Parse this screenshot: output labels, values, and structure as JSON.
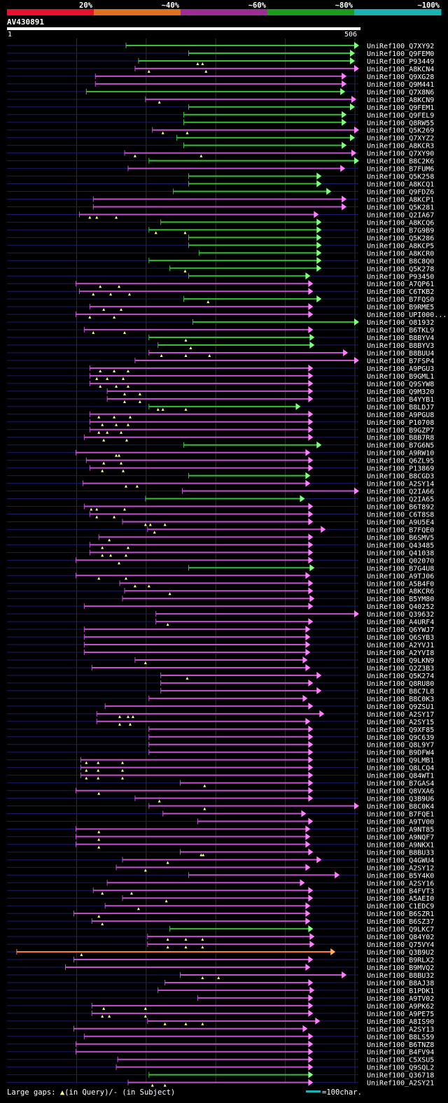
{
  "legend": {
    "labels": [
      "20%",
      "~40%",
      "~60%",
      "~80%",
      "~100%"
    ],
    "colors": [
      "#e8112d",
      "#e07020",
      "#9d2d96",
      "#1a9b1a",
      "#18b4b4"
    ]
  },
  "query": {
    "name": "AV430891",
    "start": "1",
    "end": "506",
    "length": 506
  },
  "colors": {
    "background": "#000000",
    "grid": "#2f2f2f",
    "track": "#1a1a6a",
    "green": "#30c030",
    "magenta": "#c54ed2",
    "orange": "#ff7f23",
    "arrow_green": "#80ff80",
    "arrow_magenta": "#ff80ff",
    "arrow_orange": "#ffb060",
    "gap_marker": "#ffff80"
  },
  "footer": {
    "gap_label": "Large gaps: ",
    "query_gap": "(in Query)/",
    "subject_gap": "- (in Subject)",
    "scale_label": "=100char."
  },
  "hits": [
    {
      "id": "UniRef100_Q7XY92",
      "c": "g",
      "s": 172,
      "e": 506,
      "m": []
    },
    {
      "id": "UniRef100_Q9FEM0",
      "c": "g",
      "s": 262,
      "e": 500,
      "m": []
    },
    {
      "id": "UniRef100_P93449",
      "c": "g",
      "s": 190,
      "e": 500,
      "m": [
        275,
        282
      ]
    },
    {
      "id": "UniRef100_A8KCN4",
      "c": "m",
      "s": 185,
      "e": 506,
      "m": [
        205,
        287
      ]
    },
    {
      "id": "UniRef100_Q9XG28",
      "c": "m",
      "s": 128,
      "e": 488,
      "m": []
    },
    {
      "id": "UniRef100_Q9M441",
      "c": "m",
      "s": 128,
      "e": 488,
      "m": []
    },
    {
      "id": "UniRef100_Q7X8N6",
      "c": "g",
      "s": 115,
      "e": 486,
      "m": []
    },
    {
      "id": "UniRef100_A8KCN9",
      "c": "m",
      "s": 200,
      "e": 502,
      "m": [
        220
      ]
    },
    {
      "id": "UniRef100_Q9FEM1",
      "c": "g",
      "s": 262,
      "e": 500,
      "m": []
    },
    {
      "id": "UniRef100_Q9FEL9",
      "c": "g",
      "s": 255,
      "e": 488,
      "m": []
    },
    {
      "id": "UniRef100_Q8RW55",
      "c": "g",
      "s": 255,
      "e": 488,
      "m": []
    },
    {
      "id": "UniRef100_Q5K269",
      "c": "m",
      "s": 210,
      "e": 506,
      "m": [
        225,
        260
      ]
    },
    {
      "id": "UniRef100_Q7XYZ2",
      "c": "g",
      "s": 245,
      "e": 500,
      "m": []
    },
    {
      "id": "UniRef100_A8KCR3",
      "c": "g",
      "s": 255,
      "e": 488,
      "m": []
    },
    {
      "id": "UniRef100_Q7XY90",
      "c": "m",
      "s": 170,
      "e": 502,
      "m": [
        185,
        280
      ]
    },
    {
      "id": "UniRef100_B8C2K6",
      "c": "g",
      "s": 205,
      "e": 506,
      "m": []
    },
    {
      "id": "UniRef100_B7FUM6",
      "c": "m",
      "s": 175,
      "e": 486,
      "m": []
    },
    {
      "id": "UniRef100_Q5K258",
      "c": "g",
      "s": 262,
      "e": 452,
      "m": []
    },
    {
      "id": "UniRef100_A8KCQ1",
      "c": "g",
      "s": 262,
      "e": 452,
      "m": []
    },
    {
      "id": "UniRef100_Q9FDZ6",
      "c": "g",
      "s": 240,
      "e": 466,
      "m": []
    },
    {
      "id": "UniRef100_A8KCP1",
      "c": "m",
      "s": 125,
      "e": 488,
      "m": []
    },
    {
      "id": "UniRef100_Q5K281",
      "c": "m",
      "s": 125,
      "e": 488,
      "m": []
    },
    {
      "id": "UniRef100_Q2IA67",
      "c": "m",
      "s": 105,
      "e": 448,
      "m": [
        120,
        130,
        158
      ]
    },
    {
      "id": "UniRef100_A8KCQ6",
      "c": "g",
      "s": 222,
      "e": 452,
      "m": []
    },
    {
      "id": "UniRef100_B7G9B9",
      "c": "g",
      "s": 205,
      "e": 452,
      "m": [
        215,
        257
      ]
    },
    {
      "id": "UniRef100_Q5K286",
      "c": "g",
      "s": 262,
      "e": 452,
      "m": []
    },
    {
      "id": "UniRef100_A8KCP5",
      "c": "g",
      "s": 262,
      "e": 452,
      "m": []
    },
    {
      "id": "UniRef100_A8KCR0",
      "c": "g",
      "s": 277,
      "e": 452,
      "m": []
    },
    {
      "id": "UniRef100_B8C8Q0",
      "c": "g",
      "s": 205,
      "e": 452,
      "m": []
    },
    {
      "id": "UniRef100_Q5K278",
      "c": "g",
      "s": 235,
      "e": 452,
      "m": [
        257
      ]
    },
    {
      "id": "UniRef100_P93450",
      "c": "g",
      "s": 262,
      "e": 436,
      "m": []
    },
    {
      "id": "UniRef100_A7QP61",
      "c": "m",
      "s": 100,
      "e": 440,
      "m": [
        135,
        162
      ]
    },
    {
      "id": "UniRef100_C6TKB2",
      "c": "m",
      "s": 105,
      "e": 440,
      "m": [
        125,
        150,
        177
      ]
    },
    {
      "id": "UniRef100_B7FQS0",
      "c": "g",
      "s": 255,
      "e": 452,
      "m": [
        290
      ]
    },
    {
      "id": "UniRef100_B9RME5",
      "c": "m",
      "s": 120,
      "e": 440,
      "m": [
        140,
        165
      ]
    },
    {
      "id": "UniRef100_UPI000...",
      "c": "m",
      "s": 100,
      "e": 440,
      "m": [
        120,
        155
      ]
    },
    {
      "id": "UniRef100_O81932",
      "c": "g",
      "s": 268,
      "e": 506,
      "m": []
    },
    {
      "id": "UniRef100_B6TKL9",
      "c": "m",
      "s": 112,
      "e": 440,
      "m": [
        125,
        170
      ]
    },
    {
      "id": "UniRef100_B8BYV4",
      "c": "g",
      "s": 205,
      "e": 442,
      "m": [
        258
      ]
    },
    {
      "id": "UniRef100_B8BYV3",
      "c": "g",
      "s": 218,
      "e": 442,
      "m": [
        265
      ]
    },
    {
      "id": "UniRef100_B8BUU4",
      "c": "m",
      "s": 205,
      "e": 490,
      "m": [
        223,
        258,
        292
      ]
    },
    {
      "id": "UniRef100_B7FSP4",
      "c": "m",
      "s": 185,
      "e": 506,
      "m": []
    },
    {
      "id": "UniRef100_A9PGU3",
      "c": "m",
      "s": 120,
      "e": 440,
      "m": [
        135,
        155,
        175
      ]
    },
    {
      "id": "UniRef100_B9GML1",
      "c": "m",
      "s": 120,
      "e": 440,
      "m": [
        130,
        145,
        168
      ]
    },
    {
      "id": "UniRef100_Q9SYW8",
      "c": "m",
      "s": 120,
      "e": 440,
      "m": [
        135,
        158,
        175
      ]
    },
    {
      "id": "UniRef100_Q9M320",
      "c": "m",
      "s": 145,
      "e": 440,
      "m": [
        170,
        192
      ]
    },
    {
      "id": "UniRef100_B4YYB1",
      "c": "m",
      "s": 145,
      "e": 440,
      "m": [
        170,
        192
      ]
    },
    {
      "id": "UniRef100_B8LDJ7",
      "c": "g",
      "s": 205,
      "e": 422,
      "m": [
        218,
        225,
        258
      ]
    },
    {
      "id": "UniRef100_A9PGU8",
      "c": "m",
      "s": 120,
      "e": 440,
      "m": [
        133,
        155,
        178
      ]
    },
    {
      "id": "UniRef100_P10708",
      "c": "m",
      "s": 120,
      "e": 440,
      "m": [
        138,
        158,
        175
      ]
    },
    {
      "id": "UniRef100_B9GZP7",
      "c": "m",
      "s": 120,
      "e": 440,
      "m": [
        133,
        145,
        165
      ]
    },
    {
      "id": "UniRef100_B8B7R8",
      "c": "m",
      "s": 112,
      "e": 440,
      "m": [
        140,
        173
      ]
    },
    {
      "id": "UniRef100_B7G6N5",
      "c": "g",
      "s": 255,
      "e": 452,
      "m": []
    },
    {
      "id": "UniRef100_A9RW10",
      "c": "m",
      "s": 100,
      "e": 436,
      "m": [
        158,
        162
      ]
    },
    {
      "id": "UniRef100_Q6ZL95",
      "c": "m",
      "s": 115,
      "e": 440,
      "m": [
        140,
        165
      ]
    },
    {
      "id": "UniRef100_P13869",
      "c": "m",
      "s": 120,
      "e": 440,
      "m": [
        138,
        168
      ]
    },
    {
      "id": "UniRef100_B8CGD3",
      "c": "g",
      "s": 262,
      "e": 436,
      "m": []
    },
    {
      "id": "UniRef100_A2SY14",
      "c": "m",
      "s": 110,
      "e": 436,
      "m": [
        172,
        188
      ]
    },
    {
      "id": "UniRef100_Q2IA66",
      "c": "m",
      "s": 253,
      "e": 506,
      "m": []
    },
    {
      "id": "UniRef100_Q2IA65",
      "c": "g",
      "s": 200,
      "e": 428,
      "m": []
    },
    {
      "id": "UniRef100_B6T892",
      "c": "m",
      "s": 112,
      "e": 440,
      "m": [
        122,
        130,
        170
      ]
    },
    {
      "id": "UniRef100_C6T8S8",
      "c": "m",
      "s": 120,
      "e": 440,
      "m": [
        130,
        155
      ]
    },
    {
      "id": "UniRef100_A9U5E4",
      "c": "m",
      "s": 167,
      "e": 440,
      "m": [
        200,
        207,
        228
      ]
    },
    {
      "id": "UniRef100_B7FQE0",
      "c": "m",
      "s": 203,
      "e": 458,
      "m": [
        213
      ]
    },
    {
      "id": "UniRef100_B6SMV5",
      "c": "m",
      "s": 133,
      "e": 440,
      "m": [
        148
      ]
    },
    {
      "id": "UniRef100_Q43485",
      "c": "m",
      "s": 120,
      "e": 440,
      "m": [
        138,
        175
      ]
    },
    {
      "id": "UniRef100_Q41038",
      "c": "m",
      "s": 120,
      "e": 440,
      "m": [
        138,
        150,
        172
      ]
    },
    {
      "id": "UniRef100_Q02070",
      "c": "m",
      "s": 100,
      "e": 440,
      "m": [
        162
      ]
    },
    {
      "id": "UniRef100_B7G4U8",
      "c": "g",
      "s": 262,
      "e": 442,
      "m": []
    },
    {
      "id": "UniRef100_A9TJ06",
      "c": "m",
      "s": 100,
      "e": 436,
      "m": [
        133,
        172
      ]
    },
    {
      "id": "UniRef100_A5B4F0",
      "c": "m",
      "s": 163,
      "e": 440,
      "m": [
        185,
        205
      ]
    },
    {
      "id": "UniRef100_A8KCR6",
      "c": "m",
      "s": 170,
      "e": 440,
      "m": [
        235
      ]
    },
    {
      "id": "UniRef100_B5YM80",
      "c": "m",
      "s": 167,
      "e": 442,
      "m": []
    },
    {
      "id": "UniRef100_Q40252",
      "c": "m",
      "s": 112,
      "e": 440,
      "m": []
    },
    {
      "id": "UniRef100_Q39632",
      "c": "m",
      "s": 215,
      "e": 506,
      "m": []
    },
    {
      "id": "UniRef100_A4URF4",
      "c": "m",
      "s": 215,
      "e": 440,
      "m": [
        232
      ]
    },
    {
      "id": "UniRef100_Q6YWJ7",
      "c": "m",
      "s": 112,
      "e": 436,
      "m": []
    },
    {
      "id": "UniRef100_Q6SYB3",
      "c": "m",
      "s": 112,
      "e": 436,
      "m": []
    },
    {
      "id": "UniRef100_A2YVJ1",
      "c": "m",
      "s": 112,
      "e": 436,
      "m": []
    },
    {
      "id": "UniRef100_A2YVI8",
      "c": "m",
      "s": 112,
      "e": 436,
      "m": []
    },
    {
      "id": "UniRef100_Q9LKN9",
      "c": "m",
      "s": 185,
      "e": 432,
      "m": [
        200
      ]
    },
    {
      "id": "UniRef100_Q2Z3B3",
      "c": "m",
      "s": 123,
      "e": 436,
      "m": []
    },
    {
      "id": "UniRef100_Q5K274",
      "c": "m",
      "s": 222,
      "e": 452,
      "m": [
        260
      ]
    },
    {
      "id": "UniRef100_Q8RU80",
      "c": "m",
      "s": 222,
      "e": 440,
      "m": []
    },
    {
      "id": "UniRef100_B8C7L8",
      "c": "m",
      "s": 222,
      "e": 452,
      "m": []
    },
    {
      "id": "UniRef100_B8C0K3",
      "c": "m",
      "s": 205,
      "e": 432,
      "m": []
    },
    {
      "id": "UniRef100_Q9ZSU1",
      "c": "m",
      "s": 142,
      "e": 440,
      "m": []
    },
    {
      "id": "UniRef100_A2SY17",
      "c": "m",
      "s": 130,
      "e": 456,
      "m": [
        163,
        175,
        182
      ]
    },
    {
      "id": "UniRef100_A2SY15",
      "c": "m",
      "s": 130,
      "e": 436,
      "m": [
        163,
        178
      ]
    },
    {
      "id": "UniRef100_Q9XF85",
      "c": "m",
      "s": 205,
      "e": 440,
      "m": []
    },
    {
      "id": "UniRef100_Q9C639",
      "c": "m",
      "s": 205,
      "e": 440,
      "m": []
    },
    {
      "id": "UniRef100_Q8L9Y7",
      "c": "m",
      "s": 205,
      "e": 440,
      "m": []
    },
    {
      "id": "UniRef100_B9DFW4",
      "c": "m",
      "s": 205,
      "e": 440,
      "m": []
    },
    {
      "id": "UniRef100_Q9LMB1",
      "c": "m",
      "s": 107,
      "e": 440,
      "m": [
        115,
        132,
        167
      ]
    },
    {
      "id": "UniRef100_Q8LCQ4",
      "c": "m",
      "s": 107,
      "e": 440,
      "m": [
        115,
        132,
        167
      ]
    },
    {
      "id": "UniRef100_Q84WT1",
      "c": "m",
      "s": 107,
      "e": 440,
      "m": [
        115,
        132,
        167
      ]
    },
    {
      "id": "UniRef100_B7GAS4",
      "c": "m",
      "s": 250,
      "e": 440,
      "m": [
        285
      ]
    },
    {
      "id": "UniRef100_Q8VXA6",
      "c": "m",
      "s": 100,
      "e": 440,
      "m": [
        133
      ]
    },
    {
      "id": "UniRef100_Q3B9U6",
      "c": "m",
      "s": 185,
      "e": 440,
      "m": [
        220
      ]
    },
    {
      "id": "UniRef100_B8C0K4",
      "c": "m",
      "s": 205,
      "e": 506,
      "m": [
        285
      ]
    },
    {
      "id": "UniRef100_B7FQE1",
      "c": "m",
      "s": 225,
      "e": 430,
      "m": []
    },
    {
      "id": "UniRef100_A9TV00",
      "c": "m",
      "s": 275,
      "e": 440,
      "m": []
    },
    {
      "id": "UniRef100_A9NT85",
      "c": "m",
      "s": 100,
      "e": 436,
      "m": [
        133
      ]
    },
    {
      "id": "UniRef100_A9NQF7",
      "c": "m",
      "s": 100,
      "e": 436,
      "m": [
        133
      ]
    },
    {
      "id": "UniRef100_A9NKX1",
      "c": "m",
      "s": 100,
      "e": 436,
      "m": [
        133
      ]
    },
    {
      "id": "UniRef100_B8BU33",
      "c": "m",
      "s": 250,
      "e": 440,
      "m": [
        280,
        283
      ]
    },
    {
      "id": "UniRef100_Q4GWU4",
      "c": "m",
      "s": 167,
      "e": 452,
      "m": [
        232
      ]
    },
    {
      "id": "UniRef100_A2SY12",
      "c": "m",
      "s": 158,
      "e": 436,
      "m": [
        200
      ]
    },
    {
      "id": "UniRef100_B5Y4K0",
      "c": "m",
      "s": 262,
      "e": 478,
      "m": []
    },
    {
      "id": "UniRef100_A2SY16",
      "c": "m",
      "s": 145,
      "e": 428,
      "m": []
    },
    {
      "id": "UniRef100_B4FVT3",
      "c": "m",
      "s": 125,
      "e": 440,
      "m": [
        138,
        180
      ]
    },
    {
      "id": "UniRef100_A5AEI0",
      "c": "m",
      "s": 167,
      "e": 440,
      "m": [
        230
      ]
    },
    {
      "id": "UniRef100_C1EDC9",
      "c": "m",
      "s": 142,
      "e": 436,
      "m": [
        190
      ]
    },
    {
      "id": "UniRef100_B6SZR1",
      "c": "m",
      "s": 97,
      "e": 436,
      "m": [
        133
      ]
    },
    {
      "id": "UniRef100_B6SZ37",
      "c": "m",
      "s": 123,
      "e": 436,
      "m": [
        138
      ]
    },
    {
      "id": "UniRef100_Q9LKC7",
      "c": "g",
      "s": 235,
      "e": 440,
      "m": []
    },
    {
      "id": "UniRef100_Q84Y02",
      "c": "m",
      "s": 203,
      "e": 442,
      "m": [
        232,
        258,
        282
      ]
    },
    {
      "id": "UniRef100_Q75VY4",
      "c": "m",
      "s": 203,
      "e": 442,
      "m": [
        232,
        258,
        282
      ]
    },
    {
      "id": "UniRef100_Q3B9U2",
      "c": "o",
      "s": 15,
      "e": 472,
      "m": [
        108
      ]
    },
    {
      "id": "UniRef100_B9RLX2",
      "c": "m",
      "s": 97,
      "e": 440,
      "m": []
    },
    {
      "id": "UniRef100_B9MVQ2",
      "c": "m",
      "s": 85,
      "e": 436,
      "m": []
    },
    {
      "id": "UniRef100_B8BU32",
      "c": "m",
      "s": 250,
      "e": 488,
      "m": [
        282,
        305
      ]
    },
    {
      "id": "UniRef100_B8AJ38",
      "c": "m",
      "s": 228,
      "e": 440,
      "m": []
    },
    {
      "id": "UniRef100_B1PDK1",
      "c": "m",
      "s": 218,
      "e": 442,
      "m": []
    },
    {
      "id": "UniRef100_A9TV02",
      "c": "m",
      "s": 275,
      "e": 440,
      "m": []
    },
    {
      "id": "UniRef100_A9PK62",
      "c": "m",
      "s": 123,
      "e": 440,
      "m": [
        140,
        200
      ]
    },
    {
      "id": "UniRef100_A9PE75",
      "c": "m",
      "s": 123,
      "e": 440,
      "m": [
        138,
        148,
        200
      ]
    },
    {
      "id": "UniRef100_A8IS90",
      "c": "m",
      "s": 203,
      "e": 450,
      "m": [
        228,
        258,
        282
      ]
    },
    {
      "id": "UniRef100_A2SY13",
      "c": "m",
      "s": 97,
      "e": 432,
      "m": []
    },
    {
      "id": "UniRef100_B8LS59",
      "c": "m",
      "s": 112,
      "e": 440,
      "m": []
    },
    {
      "id": "UniRef100_B6TNZ8",
      "c": "m",
      "s": 100,
      "e": 440,
      "m": []
    },
    {
      "id": "UniRef100_B4FV94",
      "c": "m",
      "s": 100,
      "e": 440,
      "m": []
    },
    {
      "id": "UniRef100_C5XSU5",
      "c": "m",
      "s": 160,
      "e": 440,
      "m": []
    },
    {
      "id": "UniRef100_Q9SQL2",
      "c": "m",
      "s": 158,
      "e": 440,
      "m": []
    },
    {
      "id": "UniRef100_Q36718",
      "c": "g",
      "s": 205,
      "e": 440,
      "m": []
    },
    {
      "id": "UniRef100_A2SY21",
      "c": "m",
      "s": 175,
      "e": 440,
      "m": [
        210,
        228
      ]
    }
  ]
}
